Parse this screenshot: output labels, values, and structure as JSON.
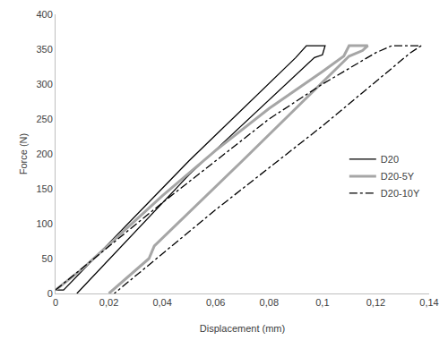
{
  "chart_data": {
    "type": "line",
    "x_label": "Displacement (mm)",
    "y_label": "Force (N)",
    "xlim": [
      0,
      0.14
    ],
    "xticks": [
      0,
      {
        "value": 0.02,
        "label": "0,02"
      },
      {
        "value": 0.04,
        "label": "0,04"
      },
      {
        "value": 0.06,
        "label": "0,06"
      },
      {
        "value": 0.08,
        "label": "0,08"
      },
      {
        "value": 0.1,
        "label": "0,1"
      },
      {
        "value": 0.12,
        "label": "0,12"
      },
      {
        "value": 0.14,
        "label": "0,14"
      }
    ],
    "ylim": [
      0,
      400
    ],
    "yticks": [
      0,
      50,
      100,
      150,
      200,
      250,
      300,
      350,
      400
    ],
    "grid": false,
    "legend": "right",
    "series": [
      {
        "name": "D20",
        "color": "#000000",
        "line_style": "solid",
        "x": [
          0,
          0.003,
          0.05,
          0.09,
          0.094,
          0.101,
          0.1,
          0.097,
          0.05,
          0.008
        ],
        "values": [
          5,
          5,
          190,
          338,
          355,
          355,
          342,
          338,
          170,
          0
        ]
      },
      {
        "name": "D20-5Y",
        "color": "#a6a6a6",
        "line_style": "solid",
        "x": [
          0,
          0.01,
          0.02,
          0.04,
          0.06,
          0.08,
          0.1,
          0.108,
          0.11,
          0.117,
          0.115,
          0.11,
          0.07,
          0.037,
          0.035,
          0.02
        ],
        "values": [
          5,
          35,
          70,
          140,
          205,
          265,
          318,
          340,
          355,
          355,
          348,
          340,
          190,
          68,
          50,
          0
        ]
      },
      {
        "name": "D20-10Y",
        "color": "#000000",
        "line_style": "dashdot",
        "x": [
          0,
          0.02,
          0.04,
          0.06,
          0.08,
          0.1,
          0.12,
          0.126,
          0.137,
          0.133,
          0.1,
          0.06,
          0.022
        ],
        "values": [
          5,
          68,
          130,
          190,
          250,
          300,
          345,
          355,
          355,
          345,
          240,
          120,
          0
        ]
      }
    ]
  }
}
